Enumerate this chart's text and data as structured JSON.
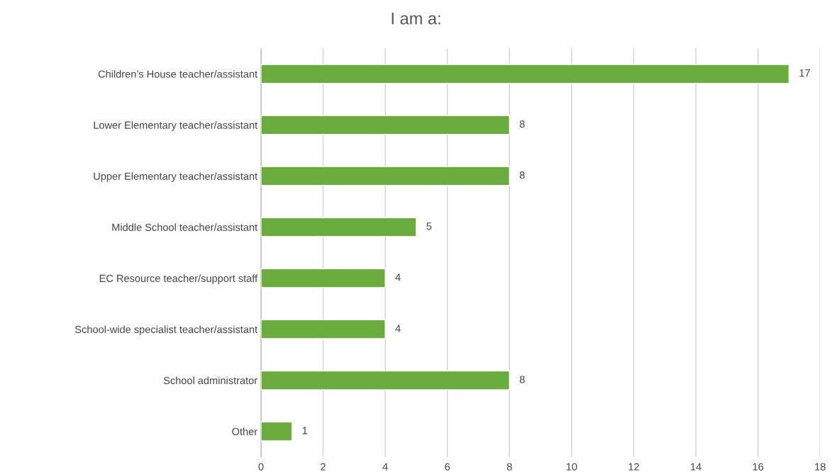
{
  "chart_data": {
    "type": "bar",
    "orientation": "horizontal",
    "title": "I am a:",
    "categories": [
      "Children’s House teacher/assistant",
      "Lower Elementary teacher/assistant",
      "Upper Elementary teacher/assistant",
      "Middle School teacher/assistant",
      "EC Resource teacher/support staff",
      "School-wide specialist teacher/assistant",
      "School administrator",
      "Other"
    ],
    "values": [
      17,
      8,
      8,
      5,
      4,
      4,
      8,
      1
    ],
    "color": "#6aac3e",
    "xlim": [
      0,
      18
    ],
    "xticks": [
      0,
      2,
      4,
      6,
      8,
      10,
      12,
      14,
      16,
      18
    ],
    "grid": "x",
    "data_labels": true
  }
}
